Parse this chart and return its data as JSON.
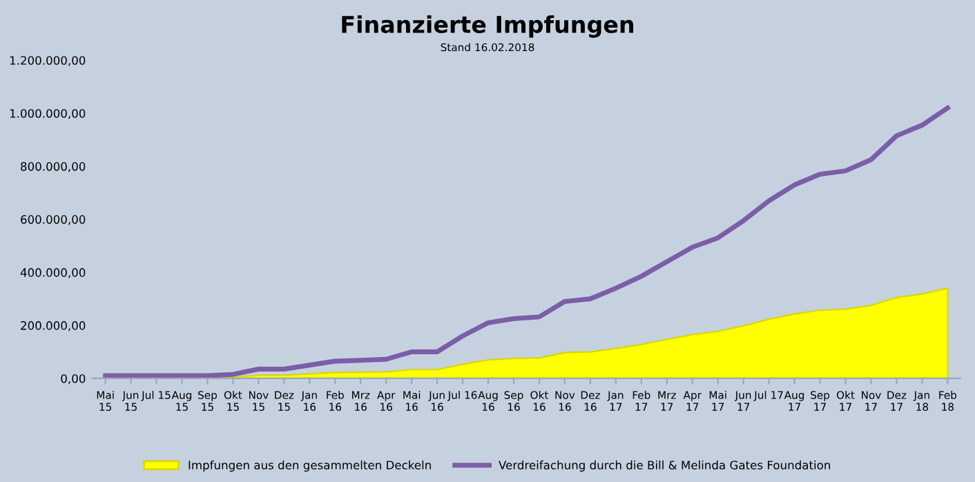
{
  "chart_data": {
    "type": "area",
    "title": "Finanzierte Impfungen",
    "subtitle": "Stand 16.02.2018",
    "categories": [
      "Mai\n15",
      "Jun\n15",
      "Jul 15",
      "Aug\n15",
      "Sep\n15",
      "Okt\n15",
      "Nov\n15",
      "Dez\n15",
      "Jan\n16",
      "Feb\n16",
      "Mrz\n16",
      "Apr\n16",
      "Mai\n16",
      "Jun\n16",
      "Jul 16",
      "Aug\n16",
      "Sep\n16",
      "Okt\n16",
      "Nov\n16",
      "Dez\n16",
      "Jan\n17",
      "Feb\n17",
      "Mrz\n17",
      "Apr\n17",
      "Mai\n17",
      "Jun\n17",
      "Jul 17",
      "Aug\n17",
      "Sep\n17",
      "Okt\n17",
      "Nov\n17",
      "Dez\n17",
      "Jan\n18",
      "Feb\n18"
    ],
    "series": [
      {
        "name": "Impfungen aus den gesammelten Deckeln",
        "color": "#ffff00",
        "values": [
          3000,
          3000,
          3000,
          3000,
          3000,
          5000,
          12000,
          12000,
          17000,
          22000,
          23000,
          24000,
          33000,
          33000,
          53000,
          70000,
          75000,
          77000,
          97000,
          100000,
          113000,
          128000,
          147000,
          165000,
          177000,
          198000,
          223000,
          243000,
          257000,
          261000,
          275000,
          305000,
          318000,
          340000
        ]
      },
      {
        "name": "Verdreifachung durch die Bill & Melinda Gates Foundation",
        "type": "line",
        "color": "#7b5ea7",
        "values": [
          10000,
          10000,
          10000,
          10000,
          10000,
          15000,
          35000,
          35000,
          50000,
          65000,
          68000,
          72000,
          100000,
          100000,
          160000,
          210000,
          225000,
          232000,
          290000,
          300000,
          340000,
          385000,
          440000,
          495000,
          530000,
          595000,
          670000,
          730000,
          770000,
          783000,
          825000,
          915000,
          955000,
          1020000
        ]
      }
    ],
    "ylim": [
      0,
      1200000
    ],
    "yticks": [
      {
        "value": 0,
        "label": "0,00"
      },
      {
        "value": 200000,
        "label": "200.000,00"
      },
      {
        "value": 400000,
        "label": "400.000,00"
      },
      {
        "value": 600000,
        "label": "600.000,00"
      },
      {
        "value": 800000,
        "label": "800.000,00"
      },
      {
        "value": 1000000,
        "label": "1.000.000,00"
      },
      {
        "value": 1200000,
        "label": "1.200.000,00"
      }
    ],
    "grid": false,
    "legend": "bottom",
    "marker": "none",
    "line_style": "solid"
  }
}
